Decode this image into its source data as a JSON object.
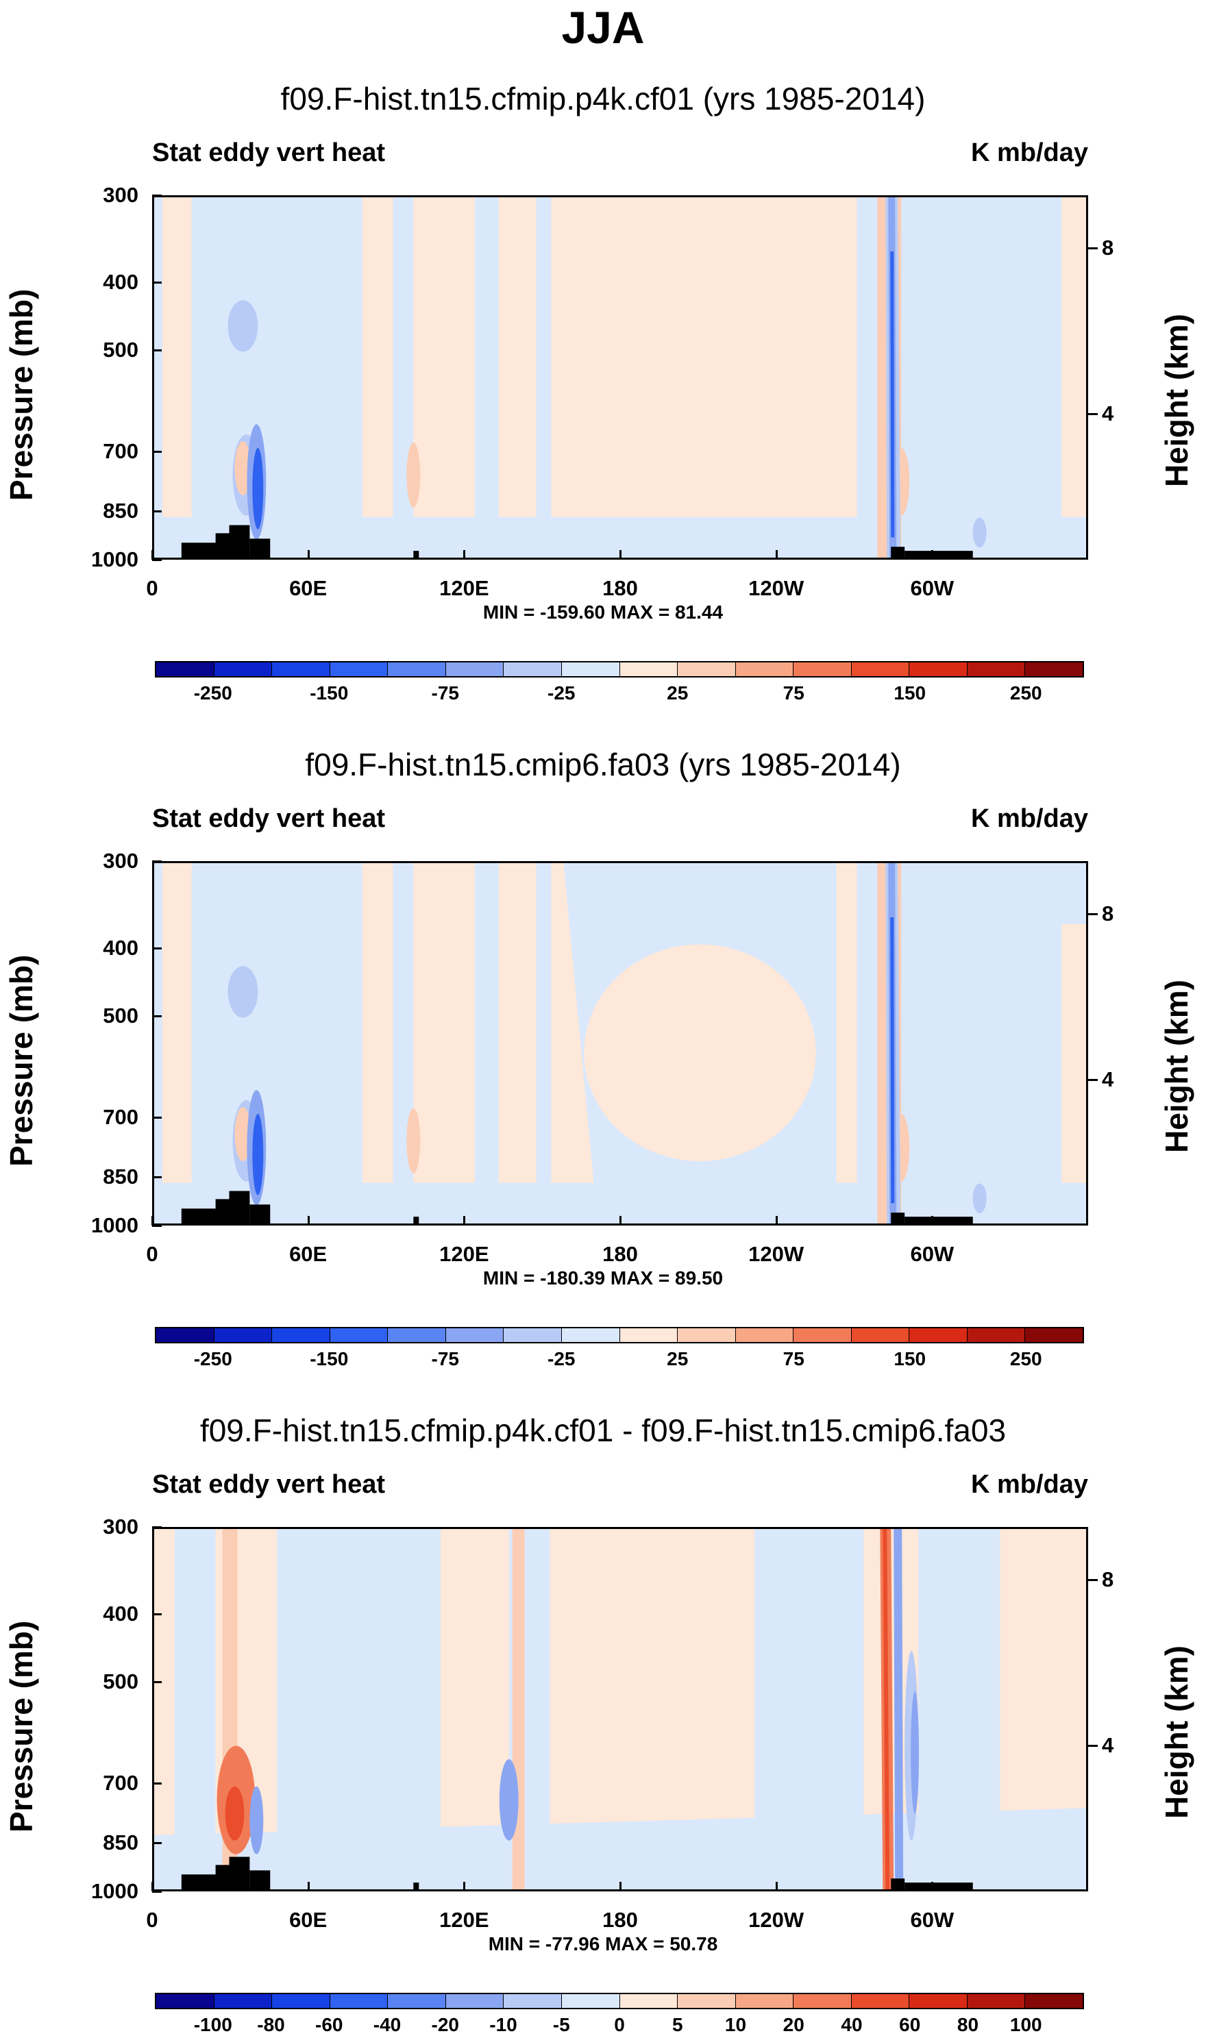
{
  "title": "JJA",
  "colors": {
    "axis": "#000000",
    "bg": "#ffffff",
    "topo": "#000000",
    "abs_palette": [
      "#08058f",
      "#0b23c8",
      "#1742e6",
      "#2f62f0",
      "#5a84f2",
      "#8aa6f2",
      "#b7cbf6",
      "#dae8fb",
      "#fde8d9",
      "#fbcdb4",
      "#f7a785",
      "#f27b57",
      "#ea4d2b",
      "#d92a16",
      "#b4170d",
      "#860707"
    ],
    "diff_palette": [
      "#08058f",
      "#0b23c8",
      "#1742e6",
      "#2f62f0",
      "#5a84f2",
      "#8aa6f2",
      "#b7cbf6",
      "#dae8fb",
      "#fde8d9",
      "#fbcdb4",
      "#f7a785",
      "#f27b57",
      "#ea4d2b",
      "#d92a16",
      "#b4170d",
      "#860707"
    ]
  },
  "chart_data": [
    {
      "type": "heatmap",
      "title": "f09.F-hist.tn15.cfmip.p4k.cf01 (yrs 1985-2014)",
      "left_string": "Stat eddy vert heat",
      "right_string": "K mb/day",
      "ylabel": "Pressure (mb)",
      "y2label": "Height (km)",
      "xticks": [
        "0",
        "60E",
        "120E",
        "180",
        "120W",
        "60W"
      ],
      "yticks": [
        "300",
        "400",
        "500",
        "700",
        "850",
        "1000"
      ],
      "y2ticks": [
        "8",
        "4"
      ],
      "min_max": "MIN = -159.60  MAX =  81.44",
      "colorbar_labels": [
        "-250",
        "-150",
        "-75",
        "-25",
        "25",
        "75",
        "150",
        "250"
      ]
    },
    {
      "type": "heatmap",
      "title": "f09.F-hist.tn15.cmip6.fa03 (yrs 1985-2014)",
      "left_string": "Stat eddy vert heat",
      "right_string": "K mb/day",
      "ylabel": "Pressure (mb)",
      "y2label": "Height (km)",
      "xticks": [
        "0",
        "60E",
        "120E",
        "180",
        "120W",
        "60W"
      ],
      "yticks": [
        "300",
        "400",
        "500",
        "700",
        "850",
        "1000"
      ],
      "y2ticks": [
        "8",
        "4"
      ],
      "min_max": "MIN = -180.39  MAX =  89.50",
      "colorbar_labels": [
        "-250",
        "-150",
        "-75",
        "-25",
        "25",
        "75",
        "150",
        "250"
      ]
    },
    {
      "type": "heatmap",
      "title": "f09.F-hist.tn15.cfmip.p4k.cf01 - f09.F-hist.tn15.cmip6.fa03",
      "left_string": "Stat eddy vert heat",
      "right_string": "K mb/day",
      "ylabel": "Pressure (mb)",
      "y2label": "Height (km)",
      "xticks": [
        "0",
        "60E",
        "120E",
        "180",
        "120W",
        "60W"
      ],
      "yticks": [
        "300",
        "400",
        "500",
        "700",
        "850",
        "1000"
      ],
      "y2ticks": [
        "8",
        "4"
      ],
      "min_max": "MIN = -77.96  MAX =  50.78",
      "colorbar_labels": [
        "-100",
        "-80",
        "-60",
        "-40",
        "-20",
        "-10",
        "-5",
        "0",
        "5",
        "10",
        "20",
        "40",
        "60",
        "80",
        "100"
      ]
    }
  ]
}
